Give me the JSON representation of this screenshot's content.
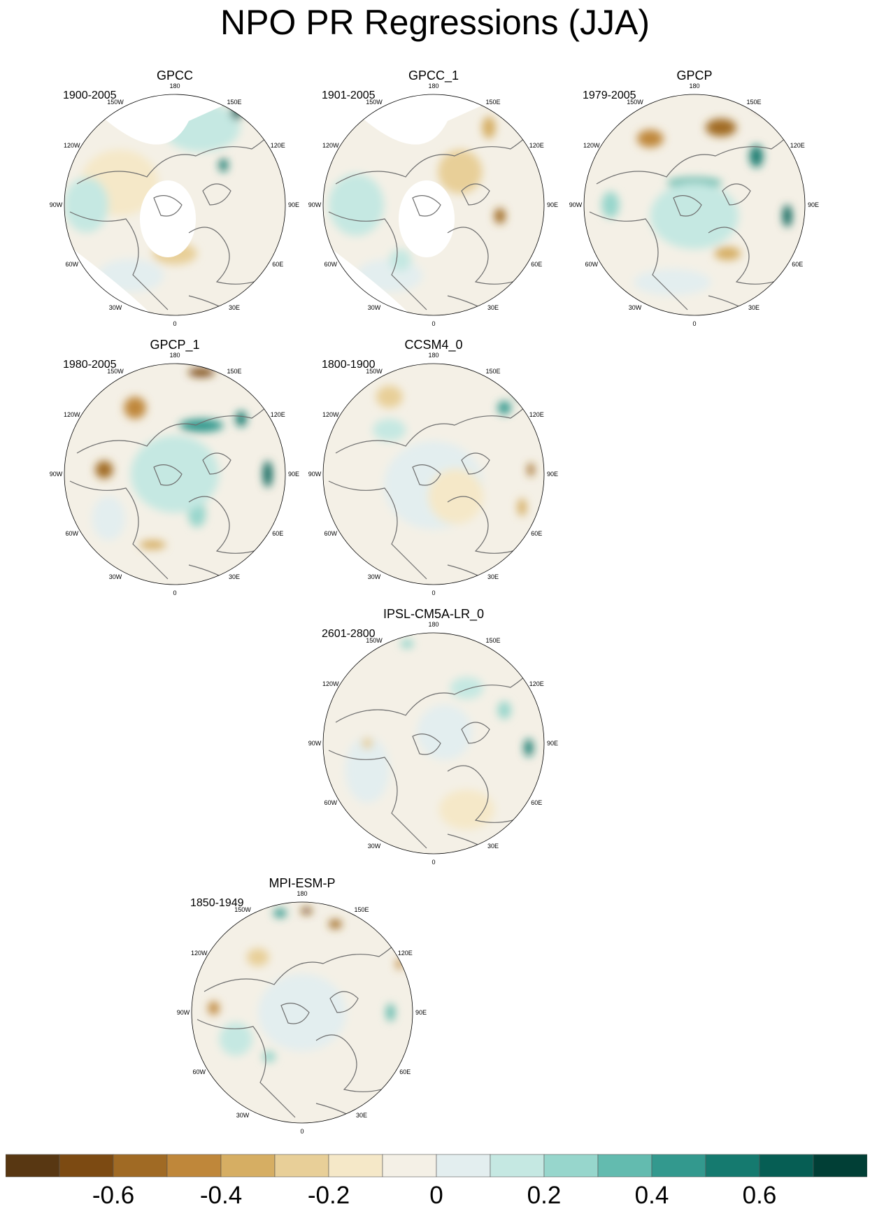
{
  "page": {
    "title": "NPO PR Regressions (JJA)"
  },
  "panels": [
    {
      "name": "GPCC",
      "years": "1900-2005",
      "style": "gpcc_a"
    },
    {
      "name": "GPCC_1",
      "years": "1901-2005",
      "style": "gpcc_b"
    },
    {
      "name": "GPCP",
      "years": "1979-2005",
      "style": "gpcp_a"
    },
    {
      "name": "GPCP_1",
      "years": "1980-2005",
      "style": "gpcp_b"
    },
    {
      "name": "CCSM4_0",
      "years": "1800-1900",
      "style": "ccsm"
    },
    {
      "name": "IPSL-CM5A-LR_0",
      "years": "2601-2800",
      "style": "ipsl"
    },
    {
      "name": "MPI-ESM-P",
      "years": "1850-1949",
      "style": "mpi"
    }
  ],
  "longitude_labels": [
    "180",
    "150E",
    "120E",
    "90E",
    "60E",
    "30E",
    "0",
    "30W",
    "60W",
    "90W",
    "120W",
    "150W"
  ],
  "colorbar": {
    "colors": [
      "#583712",
      "#7c4a12",
      "#a06a24",
      "#bf873a",
      "#d6ae63",
      "#e8cf98",
      "#f5e8c8",
      "#f4f0e6",
      "#e3eeef",
      "#c5e8e2",
      "#97d6cc",
      "#63bbaf",
      "#33998e",
      "#157a6f",
      "#065e54",
      "#013f36"
    ],
    "tick_labels": [
      "-0.6",
      "-0.4",
      "-0.2",
      "0",
      "0.2",
      "0.4",
      "0.6"
    ],
    "tick_values": [
      -0.6,
      -0.4,
      -0.2,
      0,
      0.2,
      0.4,
      0.6
    ],
    "range": [
      -0.8,
      0.8
    ]
  },
  "styles": {
    "gpcc_a": {
      "base": "#f4f0e6",
      "ocean_missing": true,
      "blobs": [
        [
          "#c5e8e2",
          0.62,
          0.15,
          0.35,
          0.22
        ],
        [
          "#f5e8c8",
          0.25,
          0.4,
          0.35,
          0.3
        ],
        [
          "#157a6f",
          0.72,
          0.32,
          0.04,
          0.06
        ],
        [
          "#065e54",
          0.78,
          0.08,
          0.05,
          0.07
        ],
        [
          "#c5e8e2",
          0.1,
          0.5,
          0.2,
          0.25
        ],
        [
          "#e8cf98",
          0.5,
          0.72,
          0.2,
          0.1
        ],
        [
          "#e3eeef",
          0.3,
          0.82,
          0.3,
          0.15
        ]
      ]
    },
    "gpcc_b": {
      "base": "#f4f0e6",
      "ocean_missing": true,
      "blobs": [
        [
          "#c5e8e2",
          0.15,
          0.5,
          0.25,
          0.28
        ],
        [
          "#d6ae63",
          0.75,
          0.15,
          0.06,
          0.1
        ],
        [
          "#a06a24",
          0.8,
          0.55,
          0.05,
          0.07
        ],
        [
          "#e8cf98",
          0.62,
          0.35,
          0.2,
          0.2
        ],
        [
          "#e3eeef",
          0.3,
          0.82,
          0.3,
          0.15
        ],
        [
          "#c5e8e2",
          0.35,
          0.75,
          0.1,
          0.1
        ]
      ]
    },
    "gpcp_a": {
      "base": "#f4f0e6",
      "ocean_missing": false,
      "blobs": [
        [
          "#bf873a",
          0.3,
          0.2,
          0.12,
          0.08
        ],
        [
          "#a06a24",
          0.62,
          0.15,
          0.14,
          0.08
        ],
        [
          "#583712",
          0.82,
          0.05,
          0.08,
          0.04
        ],
        [
          "#63bbaf",
          0.5,
          0.4,
          0.25,
          0.05
        ],
        [
          "#157a6f",
          0.78,
          0.28,
          0.06,
          0.1
        ],
        [
          "#065e54",
          0.92,
          0.55,
          0.04,
          0.1
        ],
        [
          "#c5e8e2",
          0.5,
          0.55,
          0.4,
          0.3
        ],
        [
          "#97d6cc",
          0.12,
          0.5,
          0.08,
          0.12
        ],
        [
          "#d6ae63",
          0.65,
          0.72,
          0.12,
          0.06
        ],
        [
          "#e3eeef",
          0.4,
          0.85,
          0.35,
          0.12
        ]
      ]
    },
    "gpcp_b": {
      "base": "#f4f0e6",
      "ocean_missing": false,
      "blobs": [
        [
          "#7c4a12",
          0.62,
          0.04,
          0.12,
          0.04
        ],
        [
          "#bf873a",
          0.32,
          0.2,
          0.1,
          0.1
        ],
        [
          "#a06a24",
          0.18,
          0.48,
          0.08,
          0.08
        ],
        [
          "#33998e",
          0.62,
          0.28,
          0.2,
          0.06
        ],
        [
          "#065e54",
          0.92,
          0.5,
          0.04,
          0.12
        ],
        [
          "#157a6f",
          0.8,
          0.25,
          0.05,
          0.07
        ],
        [
          "#97d6cc",
          0.6,
          0.68,
          0.08,
          0.12
        ],
        [
          "#c5e8e2",
          0.5,
          0.5,
          0.4,
          0.35
        ],
        [
          "#d6ae63",
          0.4,
          0.82,
          0.12,
          0.04
        ],
        [
          "#e3eeef",
          0.2,
          0.7,
          0.15,
          0.2
        ]
      ]
    },
    "ccsm": {
      "base": "#f4f0e6",
      "ocean_missing": false,
      "blobs": [
        [
          "#e8cf98",
          0.3,
          0.15,
          0.12,
          0.1
        ],
        [
          "#065e54",
          0.9,
          0.12,
          0.06,
          0.08
        ],
        [
          "#33998e",
          0.82,
          0.2,
          0.06,
          0.06
        ],
        [
          "#a06a24",
          0.94,
          0.48,
          0.03,
          0.06
        ],
        [
          "#e3eeef",
          0.5,
          0.55,
          0.45,
          0.4
        ],
        [
          "#c5e8e2",
          0.3,
          0.3,
          0.15,
          0.1
        ],
        [
          "#f5e8c8",
          0.6,
          0.6,
          0.25,
          0.25
        ],
        [
          "#d6ae63",
          0.9,
          0.65,
          0.04,
          0.08
        ]
      ]
    },
    "ipsl": {
      "base": "#f4f0e6",
      "ocean_missing": false,
      "blobs": [
        [
          "#97d6cc",
          0.38,
          0.05,
          0.06,
          0.04
        ],
        [
          "#c5e8e2",
          0.65,
          0.25,
          0.15,
          0.1
        ],
        [
          "#157a6f",
          0.93,
          0.52,
          0.04,
          0.08
        ],
        [
          "#97d6cc",
          0.82,
          0.35,
          0.06,
          0.08
        ],
        [
          "#e3eeef",
          0.2,
          0.62,
          0.2,
          0.3
        ],
        [
          "#f5e8c8",
          0.65,
          0.8,
          0.25,
          0.18
        ],
        [
          "#e3eeef",
          0.55,
          0.45,
          0.25,
          0.25
        ],
        [
          "#e8cf98",
          0.2,
          0.5,
          0.05,
          0.05
        ]
      ]
    },
    "mpi": {
      "base": "#f4f0e6",
      "ocean_missing": false,
      "blobs": [
        [
          "#33998e",
          0.4,
          0.05,
          0.06,
          0.04
        ],
        [
          "#7c4a12",
          0.52,
          0.04,
          0.05,
          0.03
        ],
        [
          "#a06a24",
          0.65,
          0.1,
          0.06,
          0.04
        ],
        [
          "#bf873a",
          0.94,
          0.28,
          0.03,
          0.05
        ],
        [
          "#bf873a",
          0.1,
          0.48,
          0.05,
          0.06
        ],
        [
          "#63bbaf",
          0.9,
          0.5,
          0.04,
          0.08
        ],
        [
          "#c5e8e2",
          0.2,
          0.62,
          0.15,
          0.15
        ],
        [
          "#e3eeef",
          0.5,
          0.5,
          0.4,
          0.35
        ],
        [
          "#e8cf98",
          0.3,
          0.25,
          0.1,
          0.08
        ],
        [
          "#97d6cc",
          0.35,
          0.7,
          0.06,
          0.05
        ]
      ]
    }
  }
}
